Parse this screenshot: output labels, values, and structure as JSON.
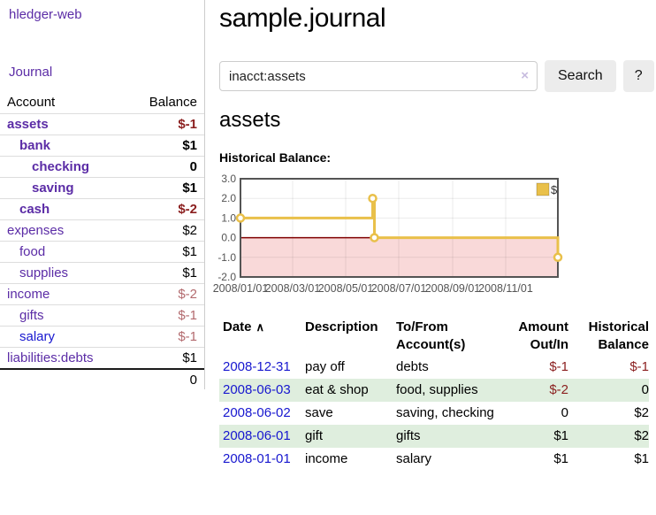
{
  "colors": {
    "purple_link": "#5b2ca6",
    "blue_link": "#1717cf",
    "neg_strong": "#8b1f1f",
    "neg_muted": "#b36a6e",
    "row_green": "#dfeede",
    "row_line": "#dddddd",
    "divider": "#cccccc",
    "btn_bg": "#ececec",
    "clear_icon": "#c7bcdf",
    "chart_border": "#545454",
    "tick_label": "#545454",
    "series_gold": "#e9c04a",
    "zero_line": "#800000",
    "neg_region": "#f9d9d9"
  },
  "sidebar": {
    "brand": "hledger-web",
    "journal_link": "Journal",
    "accounts_table": {
      "headers": {
        "account": "Account",
        "balance": "Balance"
      },
      "rows": [
        {
          "name": "assets",
          "depth": 0,
          "balance": "$-1",
          "bold": true,
          "neg": "strong"
        },
        {
          "name": "bank",
          "depth": 1,
          "balance": "$1",
          "bold": true
        },
        {
          "name": "checking",
          "depth": 2,
          "balance": "0",
          "bold": true
        },
        {
          "name": "saving",
          "depth": 2,
          "balance": "$1",
          "bold": true
        },
        {
          "name": "cash",
          "depth": 1,
          "balance": "$-2",
          "bold": true,
          "neg": "strong"
        },
        {
          "name": "expenses",
          "depth": 0,
          "balance": "$2"
        },
        {
          "name": "food",
          "depth": 1,
          "balance": "$1"
        },
        {
          "name": "supplies",
          "depth": 1,
          "balance": "$1"
        },
        {
          "name": "income",
          "depth": 0,
          "balance": "$-2",
          "neg": "muted"
        },
        {
          "name": "gifts",
          "depth": 1,
          "balance": "$-1",
          "neg": "muted"
        },
        {
          "name": "salary",
          "depth": 1,
          "balance": "$-1",
          "neg": "muted",
          "link_color": "blue"
        },
        {
          "name": "liabilities:debts",
          "depth": 0,
          "balance": "$1"
        }
      ],
      "total": "0"
    }
  },
  "main": {
    "title": "sample.journal",
    "search": {
      "value": "inacct:assets",
      "clear_label": "×",
      "button_label": "Search",
      "help_label": "?"
    },
    "account_heading": "assets",
    "chart_title": "Historical Balance:",
    "register": {
      "headers": {
        "date": "Date",
        "sort_indicator": "∧",
        "description": "Description",
        "accounts": "To/From Account(s)",
        "amount": "Amount Out/In",
        "balance": "Historical Balance"
      },
      "rows": [
        {
          "date": "2008-12-31",
          "description": "pay off",
          "accounts": "debts",
          "amount": "$-1",
          "balance": "$-1",
          "amount_neg": true,
          "balance_neg": true
        },
        {
          "date": "2008-06-03",
          "description": "eat & shop",
          "accounts": "food, supplies",
          "amount": "$-2",
          "balance": "0",
          "amount_neg": true
        },
        {
          "date": "2008-06-02",
          "description": "save",
          "accounts": "saving, checking",
          "amount": "0",
          "balance": "$2"
        },
        {
          "date": "2008-06-01",
          "description": "gift",
          "accounts": "gifts",
          "amount": "$1",
          "balance": "$2"
        },
        {
          "date": "2008-01-01",
          "description": "income",
          "accounts": "salary",
          "amount": "$1",
          "balance": "$1"
        }
      ]
    }
  },
  "chart_data": {
    "type": "line",
    "step": true,
    "title": "Historical Balance:",
    "legend": "$",
    "legend_position": "top-right",
    "grid": true,
    "ylim": [
      -2,
      3
    ],
    "xlim": [
      "2008-01-01",
      "2008-12-31"
    ],
    "y_ticks": [
      "3.0",
      "2.0",
      "1.0",
      "0.0",
      "-1.0",
      "-2.0"
    ],
    "x_ticks": [
      "2008/01/01",
      "2008/03/01",
      "2008/05/01",
      "2008/07/01",
      "2008/09/01",
      "2008/11/01"
    ],
    "series": [
      {
        "name": "$",
        "points": [
          [
            "2008-01-01",
            1
          ],
          [
            "2008-06-01",
            2
          ],
          [
            "2008-06-03",
            0
          ],
          [
            "2008-12-31",
            -1
          ]
        ]
      }
    ]
  }
}
